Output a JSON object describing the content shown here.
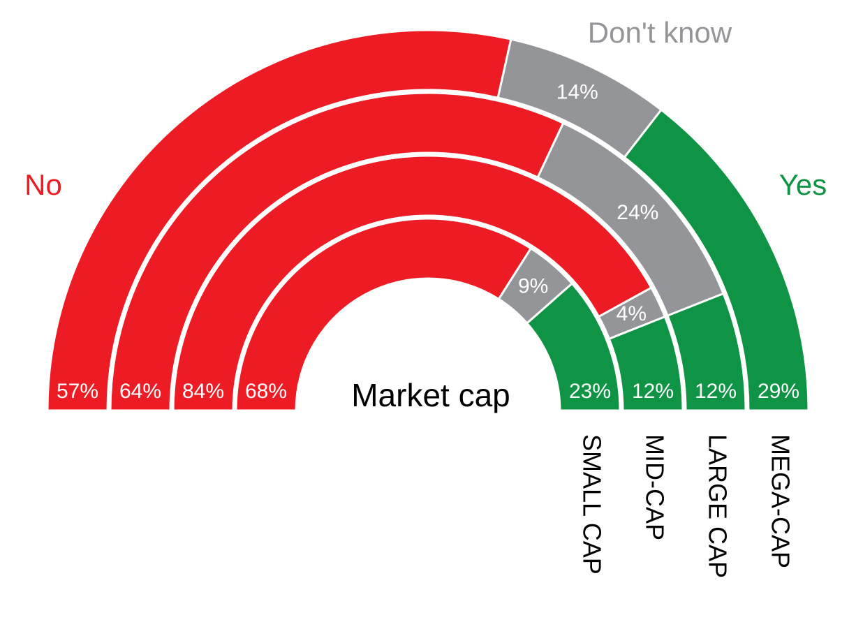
{
  "chart_data": {
    "type": "radial",
    "center_label": "Market cap",
    "categories": [
      "SMALL CAP",
      "MID-CAP",
      "LARGE CAP",
      "MEGA-CAP"
    ],
    "series": [
      {
        "name": "No",
        "color": "#ed1c24",
        "values": [
          68,
          84,
          64,
          57
        ],
        "value_labels": [
          "68%",
          "84%",
          "64%",
          "57%"
        ]
      },
      {
        "name": "Don't know",
        "color": "#939598",
        "values": [
          9,
          4,
          24,
          14
        ],
        "value_labels": [
          "9%",
          "4%",
          "24%",
          "14%"
        ]
      },
      {
        "name": "Yes",
        "color": "#0f9446",
        "values": [
          23,
          12,
          12,
          29
        ],
        "value_labels": [
          "23%",
          "12%",
          "12%",
          "29%"
        ]
      }
    ]
  }
}
